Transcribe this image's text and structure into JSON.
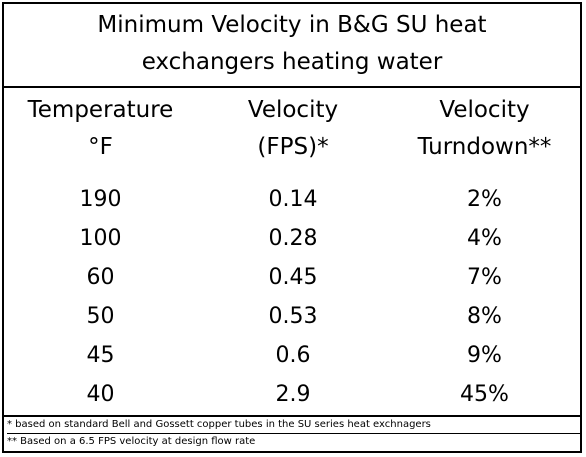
{
  "title": {
    "line1": "Minimum Velocity in B&G SU heat",
    "line2": "exchangers heating water"
  },
  "table": {
    "headers": [
      [
        "Temperature",
        "°F"
      ],
      [
        "Velocity",
        "(FPS)*"
      ],
      [
        "Velocity",
        "Turndown**"
      ]
    ],
    "rows": [
      [
        "190",
        "0.14",
        "2%"
      ],
      [
        "100",
        "0.28",
        "4%"
      ],
      [
        "60",
        "0.45",
        "7%"
      ],
      [
        "50",
        "0.53",
        "8%"
      ],
      [
        "45",
        "0.6",
        "9%"
      ],
      [
        "40",
        "2.9",
        "45%"
      ]
    ]
  },
  "footnotes": [
    "* based on standard Bell and Gossett copper tubes in the SU series heat exchnagers",
    "** Based on a 6.5 FPS velocity at design flow rate"
  ]
}
